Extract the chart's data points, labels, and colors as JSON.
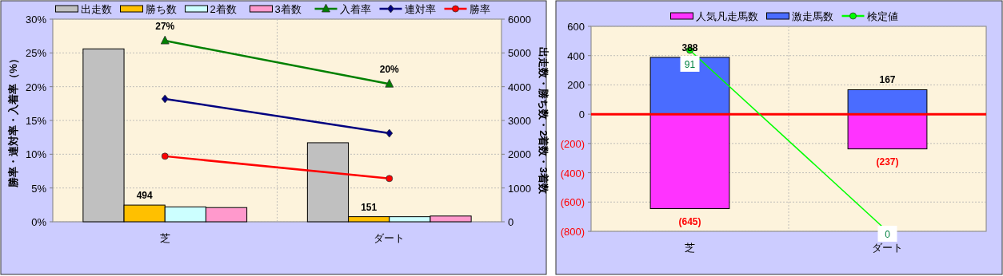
{
  "chart_data": [
    {
      "type": "bar",
      "categories": [
        "芝",
        "ダート"
      ],
      "ylabel": "勝率・連対率・入着率（%）",
      "y2label": "出走数・勝ち数・2着数・3着数",
      "ylim": [
        0,
        30
      ],
      "yticks": [
        {
          "value": 0,
          "label": "0%"
        },
        {
          "value": 5,
          "label": "5%"
        },
        {
          "value": 10,
          "label": "10%"
        },
        {
          "value": 15,
          "label": "15%"
        },
        {
          "value": 20,
          "label": "20%"
        },
        {
          "value": 25,
          "label": "25%"
        },
        {
          "value": 30,
          "label": "30%"
        }
      ],
      "y2lim": [
        0,
        6000
      ],
      "y2ticks": [
        0,
        1000,
        2000,
        3000,
        4000,
        5000,
        6000
      ],
      "grid": true,
      "legend": "top",
      "series": [
        {
          "name": "出走数",
          "axis": "y2",
          "color": "#c0c0c0",
          "values": [
            5120,
            2340
          ]
        },
        {
          "name": "勝ち数",
          "axis": "y2",
          "color": "#ffc000",
          "values": [
            494,
            151
          ],
          "value_labels": [
            "494",
            "151"
          ]
        },
        {
          "name": "2着数",
          "axis": "y2",
          "color": "#ccffff",
          "values": [
            440,
            150
          ]
        },
        {
          "name": "3着数",
          "axis": "y2",
          "color": "#ff99cc",
          "values": [
            420,
            170
          ]
        },
        {
          "name": "入着率",
          "type": "line",
          "color": "#008000",
          "marker": "triangle",
          "values": [
            26.8,
            20.4
          ],
          "value_labels": [
            "27%",
            "20%"
          ]
        },
        {
          "name": "連対率",
          "type": "line",
          "color": "#000080",
          "marker": "diamond",
          "values": [
            18.2,
            13.1
          ]
        },
        {
          "name": "勝率",
          "type": "line",
          "color": "#ff0000",
          "marker": "circle",
          "values": [
            9.7,
            6.4
          ]
        }
      ]
    },
    {
      "type": "bar",
      "stacked": true,
      "categories": [
        "芝",
        "ダート"
      ],
      "ylim": [
        -800,
        600
      ],
      "yticks": [
        {
          "value": -800,
          "label": "(800)"
        },
        {
          "value": -600,
          "label": "(600)"
        },
        {
          "value": -400,
          "label": "(400)"
        },
        {
          "value": -200,
          "label": "(200)"
        },
        0,
        200,
        400,
        600
      ],
      "y2lim": [
        0,
        103
      ],
      "grid": true,
      "legend": "top",
      "ref_lines": [
        {
          "axis": "y",
          "value": 0,
          "color": "#ff0000"
        }
      ],
      "series": [
        {
          "name": "人気凡走馬数",
          "color": "#ff33ff",
          "values": [
            -645,
            -237
          ],
          "value_labels": [
            "(645)",
            "(237)"
          ]
        },
        {
          "name": "激走馬数",
          "color": "#4a6cff",
          "values": [
            388,
            167
          ],
          "value_labels": [
            "388",
            "167"
          ]
        },
        {
          "name": "検定値",
          "type": "line",
          "axis": "y2",
          "color": "#00ff00",
          "marker": "circle",
          "values": [
            91,
            0
          ],
          "value_labels": [
            "91",
            "0"
          ]
        }
      ]
    }
  ]
}
